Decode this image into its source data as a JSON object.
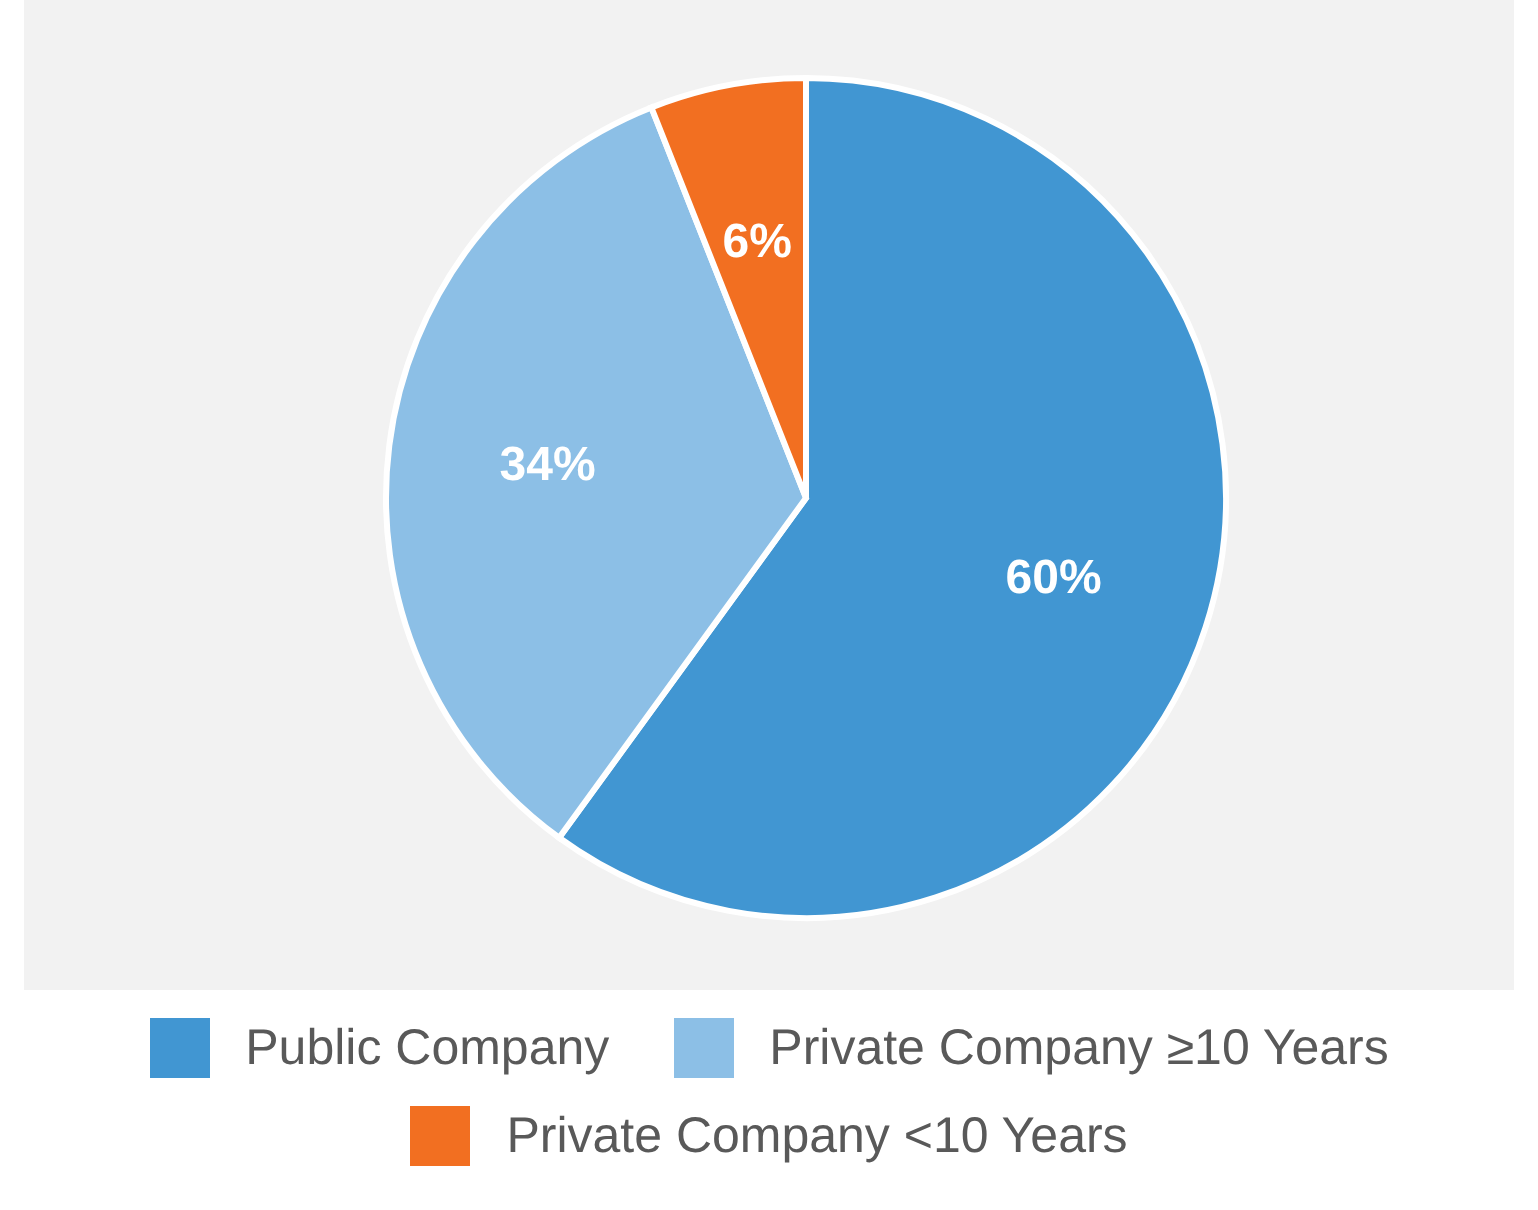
{
  "chart_data": {
    "type": "pie",
    "categories": [
      "Public Company",
      "Private Company ≥10 Years",
      "Private Company <10 Years"
    ],
    "values": [
      60,
      34,
      6
    ],
    "colors": [
      "#4196d2",
      "#8cbfe6",
      "#f26f21"
    ],
    "value_labels": [
      "60%",
      "34%",
      "6%"
    ],
    "legend": "bottom"
  }
}
